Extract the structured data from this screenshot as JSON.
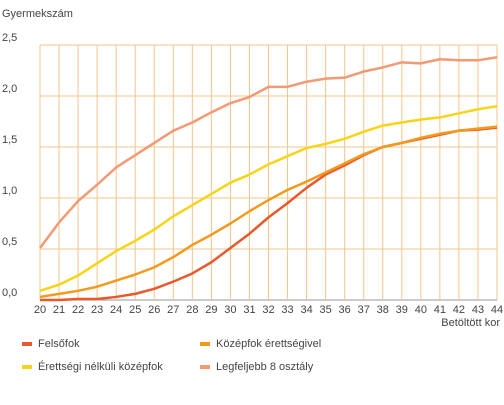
{
  "chart_data": {
    "type": "line",
    "y_label": "Gyermekszám",
    "x_label": "Betöltött kor",
    "x": [
      20,
      21,
      22,
      23,
      24,
      25,
      26,
      27,
      28,
      29,
      30,
      31,
      32,
      33,
      34,
      35,
      36,
      37,
      38,
      39,
      40,
      41,
      42,
      43,
      44
    ],
    "xlim": [
      20,
      44
    ],
    "xticks": [
      20,
      21,
      22,
      23,
      24,
      25,
      26,
      27,
      28,
      29,
      30,
      31,
      32,
      33,
      34,
      35,
      36,
      37,
      38,
      39,
      40,
      41,
      42,
      43,
      44
    ],
    "ylim": [
      0,
      2.5
    ],
    "yticks": [
      {
        "value": 0,
        "label": "0,0"
      },
      {
        "value": 0.5,
        "label": "0,5"
      },
      {
        "value": 1,
        "label": "1,0"
      },
      {
        "value": 1.5,
        "label": "1,5"
      },
      {
        "value": 2,
        "label": "2,0"
      },
      {
        "value": 2.5,
        "label": "2,5"
      }
    ],
    "grid": true,
    "legend": "bottom",
    "series": [
      {
        "name": "Felsőfok",
        "color": "#e8592b",
        "values": [
          0,
          0,
          0.01,
          0.01,
          0.03,
          0.06,
          0.11,
          0.18,
          0.26,
          0.37,
          0.51,
          0.65,
          0.81,
          0.95,
          1.1,
          1.23,
          1.32,
          1.42,
          1.5,
          1.54,
          1.58,
          1.62,
          1.66,
          1.67,
          1.69
        ]
      },
      {
        "name": "Középfok érettségivel",
        "color": "#f39a1c",
        "values": [
          0.03,
          0.06,
          0.09,
          0.13,
          0.19,
          0.25,
          0.32,
          0.42,
          0.54,
          0.64,
          0.75,
          0.87,
          0.98,
          1.08,
          1.16,
          1.25,
          1.34,
          1.43,
          1.5,
          1.54,
          1.59,
          1.63,
          1.66,
          1.68,
          1.7
        ]
      },
      {
        "name": "Érettségi nélküli középfok",
        "color": "#f7d417",
        "values": [
          0.09,
          0.15,
          0.24,
          0.36,
          0.48,
          0.58,
          0.69,
          0.82,
          0.93,
          1.04,
          1.15,
          1.23,
          1.33,
          1.41,
          1.49,
          1.53,
          1.58,
          1.65,
          1.71,
          1.74,
          1.77,
          1.79,
          1.83,
          1.87,
          1.9
        ]
      },
      {
        "name": "Legfeljebb 8 osztály",
        "color": "#f29a73",
        "values": [
          0.51,
          0.76,
          0.97,
          1.13,
          1.3,
          1.42,
          1.54,
          1.66,
          1.74,
          1.84,
          1.93,
          1.99,
          2.09,
          2.09,
          2.14,
          2.17,
          2.18,
          2.24,
          2.28,
          2.33,
          2.32,
          2.36,
          2.35,
          2.35,
          2.38
        ]
      }
    ]
  }
}
